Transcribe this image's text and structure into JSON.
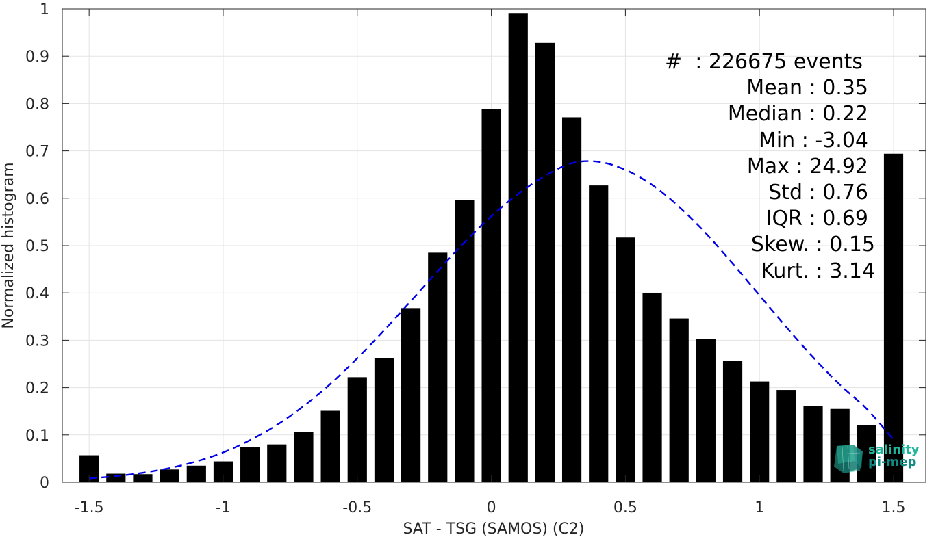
{
  "chart_data": {
    "type": "bar",
    "xlabel": "SAT - TSG (SAMOS) (C2)",
    "ylabel": "Normalized histogram",
    "xlim": [
      -1.6,
      1.62
    ],
    "ylim": [
      0,
      1
    ],
    "xticks": [
      "-1.5",
      "-1",
      "-0.5",
      "0",
      "0.5",
      "1",
      "1.5"
    ],
    "yticks": [
      "0",
      "0.1",
      "0.2",
      "0.3",
      "0.4",
      "0.5",
      "0.6",
      "0.7",
      "0.8",
      "0.9",
      "1"
    ],
    "grid": true,
    "bars": {
      "x": [
        -1.5,
        -1.4,
        -1.3,
        -1.2,
        -1.1,
        -1.0,
        -0.9,
        -0.8,
        -0.7,
        -0.6,
        -0.5,
        -0.4,
        -0.3,
        -0.2,
        -0.1,
        0.0,
        0.1,
        0.2,
        0.3,
        0.4,
        0.5,
        0.6,
        0.7,
        0.8,
        0.9,
        1.0,
        1.1,
        1.2,
        1.3,
        1.4,
        1.5
      ],
      "values": [
        0.057,
        0.018,
        0.017,
        0.027,
        0.035,
        0.044,
        0.074,
        0.08,
        0.106,
        0.151,
        0.222,
        0.263,
        0.368,
        0.485,
        0.596,
        0.788,
        0.991,
        0.928,
        0.771,
        0.627,
        0.517,
        0.399,
        0.346,
        0.303,
        0.256,
        0.213,
        0.195,
        0.161,
        0.155,
        0.121,
        0.694
      ],
      "color": "#000000"
    },
    "fit_curve": {
      "style": "dashed",
      "color": "#0000e6",
      "x": [
        -1.5,
        -1.4,
        -1.3,
        -1.2,
        -1.1,
        -1.0,
        -0.9,
        -0.8,
        -0.7,
        -0.6,
        -0.5,
        -0.4,
        -0.3,
        -0.2,
        -0.1,
        0.0,
        0.1,
        0.2,
        0.3,
        0.4,
        0.5,
        0.6,
        0.7,
        0.8,
        0.9,
        1.0,
        1.1,
        1.2,
        1.3,
        1.4,
        1.5
      ],
      "values": [
        0.008,
        0.013,
        0.02,
        0.03,
        0.044,
        0.063,
        0.089,
        0.121,
        0.161,
        0.208,
        0.262,
        0.321,
        0.383,
        0.446,
        0.507,
        0.562,
        0.609,
        0.647,
        0.674,
        0.677,
        0.66,
        0.628,
        0.582,
        0.526,
        0.462,
        0.395,
        0.328,
        0.264,
        0.206,
        0.155,
        0.09
      ]
    }
  },
  "stats": {
    "events": "#  : 226675 events",
    "mean": "Mean : 0.35",
    "median": "Median : 0.22",
    "min": "Min : -3.04",
    "max": "Max : 24.92",
    "std": "Std : 0.76",
    "iqr": "IQR : 0.69",
    "skew": "Skew. : 0.15",
    "kurt": "Kurt. : 3.14"
  },
  "logo": {
    "line1": "salinity",
    "line2": "pi-mep",
    "color_light": "#1fb59a",
    "color_dark": "#118a82"
  }
}
